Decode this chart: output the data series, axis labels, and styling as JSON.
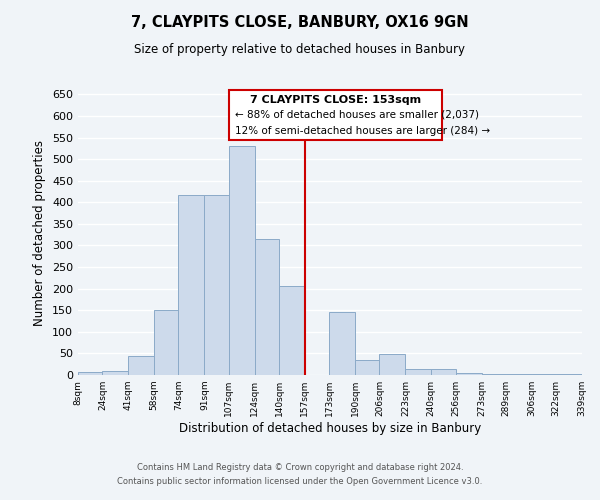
{
  "title": "7, CLAYPITS CLOSE, BANBURY, OX16 9GN",
  "subtitle": "Size of property relative to detached houses in Banbury",
  "xlabel": "Distribution of detached houses by size in Banbury",
  "ylabel": "Number of detached properties",
  "bar_color": "#cddaeb",
  "bar_edge_color": "#8baac8",
  "reference_line_x": 157,
  "reference_line_color": "#cc0000",
  "bins": [
    8,
    24,
    41,
    58,
    74,
    91,
    107,
    124,
    140,
    157,
    173,
    190,
    206,
    223,
    240,
    256,
    273,
    289,
    306,
    322,
    339
  ],
  "counts": [
    8,
    10,
    45,
    150,
    418,
    418,
    530,
    315,
    205,
    0,
    145,
    35,
    49,
    15,
    13,
    5,
    2,
    2,
    2,
    2
  ],
  "tick_labels": [
    "8sqm",
    "24sqm",
    "41sqm",
    "58sqm",
    "74sqm",
    "91sqm",
    "107sqm",
    "124sqm",
    "140sqm",
    "157sqm",
    "173sqm",
    "190sqm",
    "206sqm",
    "223sqm",
    "240sqm",
    "256sqm",
    "273sqm",
    "289sqm",
    "306sqm",
    "322sqm",
    "339sqm"
  ],
  "ylim": [
    0,
    660
  ],
  "yticks": [
    0,
    50,
    100,
    150,
    200,
    250,
    300,
    350,
    400,
    450,
    500,
    550,
    600,
    650
  ],
  "annotation_title": "7 CLAYPITS CLOSE: 153sqm",
  "annotation_line1": "← 88% of detached houses are smaller (2,037)",
  "annotation_line2": "12% of semi-detached houses are larger (284) →",
  "footer1": "Contains HM Land Registry data © Crown copyright and database right 2024.",
  "footer2": "Contains public sector information licensed under the Open Government Licence v3.0.",
  "background_color": "#f0f4f8",
  "grid_color": "white"
}
